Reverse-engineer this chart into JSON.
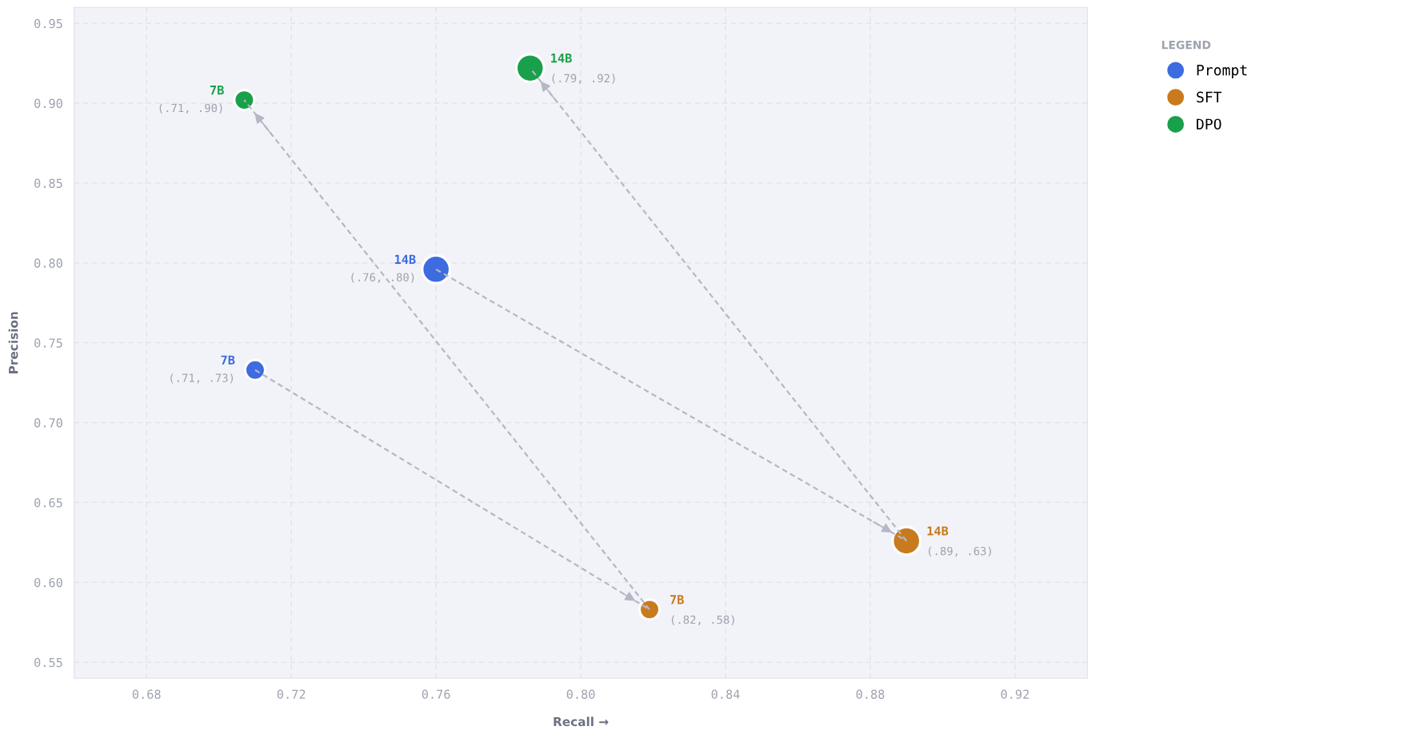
{
  "chart_data": {
    "type": "bubble",
    "xlabel": "Recall →",
    "ylabel": "Precision",
    "legend_title": "LEGEND",
    "legend": "top right",
    "grid": true,
    "xlim": [
      0.66,
      0.94
    ],
    "xticks": [
      0.68,
      0.72,
      0.76,
      {
        "value": 0.8,
        "label": "0.80"
      },
      0.84,
      0.88,
      0.92
    ],
    "ylim": [
      0.54,
      0.96
    ],
    "yticks": [
      0.55,
      {
        "value": 0.6,
        "label": "0.60"
      },
      0.65,
      {
        "value": 0.7,
        "label": "0.70"
      },
      0.75,
      {
        "value": 0.8,
        "label": "0.80"
      },
      0.85,
      {
        "value": 0.9,
        "label": "0.90"
      },
      0.95
    ],
    "marker": "circle",
    "series": [
      {
        "name": "Prompt",
        "color": "#3d6be0",
        "x": [
          0.71,
          0.76
        ],
        "values": [
          0.733,
          0.796
        ],
        "sizes": [
          0.52,
          1
        ],
        "value_labels": [
          "(.71, .73)",
          "(.76, .80)"
        ]
      },
      {
        "name": "SFT",
        "color": "#c97a1e",
        "x": [
          0.819,
          0.89
        ],
        "values": [
          0.583,
          0.626
        ],
        "sizes": [
          0.52,
          1
        ],
        "value_labels": [
          "(.82, .58)",
          "(.89, .63)"
        ]
      },
      {
        "name": "DPO",
        "color": "#19a04b",
        "x": [
          0.707,
          0.786
        ],
        "values": [
          0.902,
          0.922
        ],
        "sizes": [
          0.52,
          1
        ],
        "value_labels": [
          "(.71, .90)",
          "(.79, .92)"
        ]
      },
      {
        "type": "line",
        "marker": "none",
        "color": "#b4b8c6",
        "line_style": "dashed",
        "x": [
          0.71,
          0.819
        ],
        "values": [
          0.733,
          0.583
        ]
      },
      {
        "type": "line",
        "marker": "none",
        "color": "#b4b8c6",
        "line_style": "dashed",
        "x": [
          0.819,
          0.707
        ],
        "values": [
          0.583,
          0.902
        ]
      },
      {
        "type": "line",
        "marker": "none",
        "color": "#b4b8c6",
        "line_style": "dashed",
        "x": [
          0.76,
          0.89
        ],
        "values": [
          0.796,
          0.626
        ]
      },
      {
        "type": "line",
        "marker": "none",
        "color": "#b4b8c6",
        "line_style": "dashed",
        "x": [
          0.89,
          0.786
        ],
        "values": [
          0.626,
          0.922
        ]
      }
    ],
    "annotations": [
      {
        "text": "7B",
        "x": 0.71,
        "y": 0.733
      },
      {
        "text": "14B",
        "x": 0.76,
        "y": 0.796
      },
      {
        "text": "7B",
        "x": 0.819,
        "y": 0.583
      },
      {
        "text": "14B",
        "x": 0.89,
        "y": 0.626
      },
      {
        "text": "7B",
        "x": 0.707,
        "y": 0.902
      },
      {
        "text": "14B",
        "x": 0.786,
        "y": 0.922
      }
    ]
  }
}
